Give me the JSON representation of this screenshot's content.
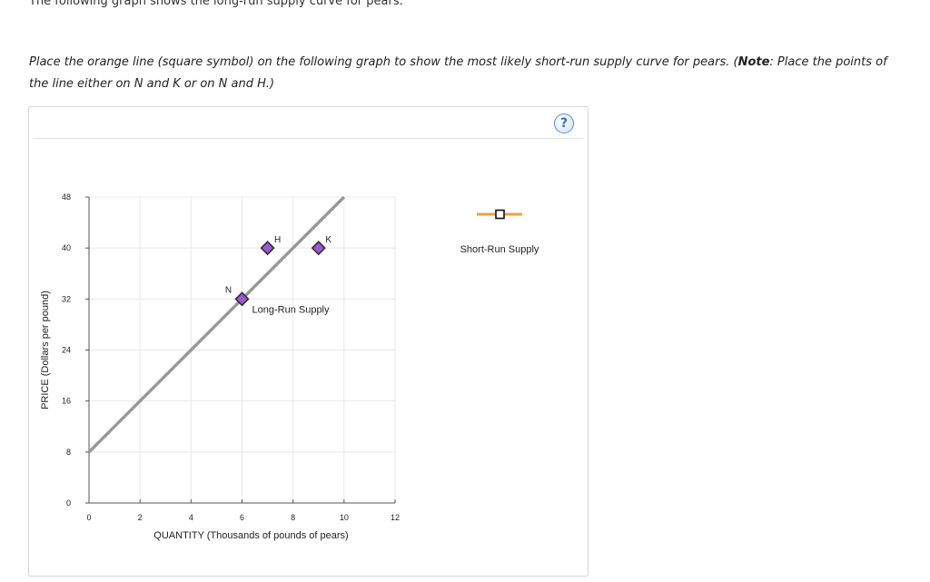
{
  "page": {
    "intro_text": "The following graph shows the long-run supply curve for pears.",
    "instruction": {
      "part1": "Place the orange line (square symbol) on the following graph to show the most likely short-run supply curve for pears. (",
      "note_bold": "Note",
      "part2": ": Place the points of the line either on N and K or on N and H.)"
    },
    "help_label": "?"
  },
  "colors": {
    "long_run_line": "#999999",
    "point_fill": "#9b59d0",
    "point_stroke": "#2a2a2a",
    "short_run_orange": "#f0a040",
    "grid": "#e8e8e8",
    "axis": "#555555"
  },
  "chart_data": {
    "type": "line",
    "xlabel": "QUANTITY (Thousands of pounds of pears)",
    "ylabel": "PRICE (Dollars per pound)",
    "xlim": [
      0,
      12
    ],
    "ylim": [
      0,
      48
    ],
    "x_ticks": [
      "0",
      "2",
      "4",
      "6",
      "8",
      "10",
      "12"
    ],
    "y_ticks": [
      "0",
      "8",
      "16",
      "24",
      "32",
      "40",
      "48"
    ],
    "grid": true,
    "series": [
      {
        "name": "Long-Run Supply",
        "x": [
          0,
          10
        ],
        "y": [
          8,
          48
        ]
      }
    ],
    "points": [
      {
        "label": "N",
        "x": 6,
        "y": 32
      },
      {
        "label": "H",
        "x": 7,
        "y": 40
      },
      {
        "label": "K",
        "x": 9,
        "y": 40
      }
    ],
    "legend": {
      "position": "right",
      "items": [
        {
          "name": "Short-Run Supply",
          "marker": "square",
          "color": "#f0a040"
        }
      ]
    }
  }
}
